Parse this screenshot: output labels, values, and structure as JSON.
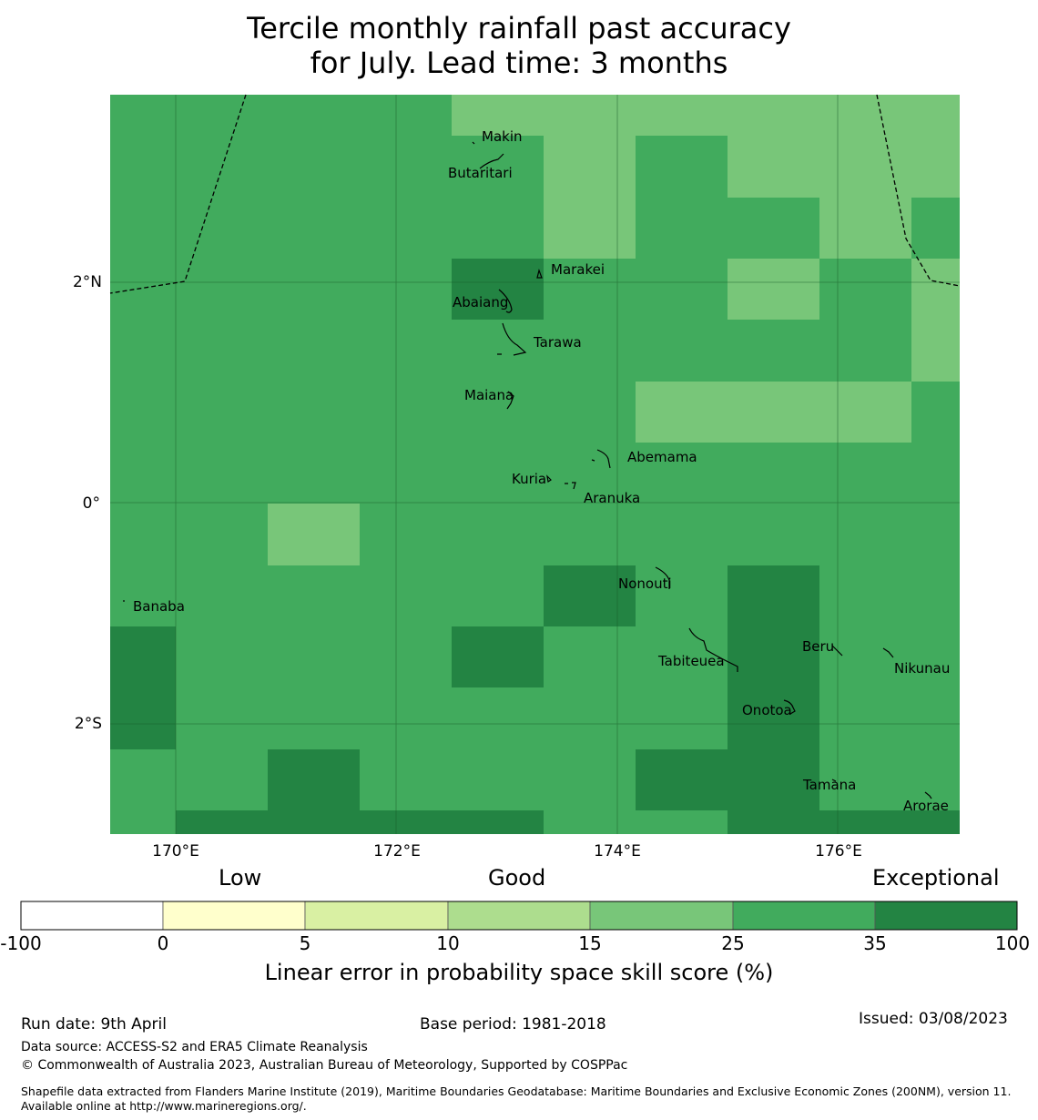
{
  "title": {
    "line1": "Tercile monthly rainfall past accuracy",
    "line2": "for July. Lead time: 3 months"
  },
  "map": {
    "lon_ticks": [
      "170°E",
      "172°E",
      "174°E",
      "176°E"
    ],
    "lat_ticks": [
      "2°N",
      "0°",
      "2°S"
    ],
    "islands": [
      "Makin",
      "Butaritari",
      "Marakei",
      "Abaiang",
      "Tarawa",
      "Maiana",
      "Abemama",
      "Kuria",
      "Aranuka",
      "Nonouti",
      "Banaba",
      "Tabiteuea",
      "Beru",
      "Nikunau",
      "Onotoa",
      "Tamana",
      "Arorae"
    ]
  },
  "legend": {
    "categories": [
      "Low",
      "Good",
      "Exceptional"
    ],
    "ticks": [
      "-100",
      "0",
      "5",
      "10",
      "15",
      "25",
      "35",
      "100"
    ],
    "colors": [
      "#ffffff",
      "#ffffcc",
      "#d9f0a3",
      "#addd8e",
      "#78c679",
      "#41ab5d",
      "#238443"
    ],
    "label": "Linear error in probability space skill score (%)"
  },
  "footer": {
    "run_date": "Run date: 9th April",
    "base_period": "Base period: 1981-2018",
    "issued": "Issued: 03/08/2023",
    "data_source": "Data source: ACCESS-S2 and ERA5 Climate Reanalysis",
    "copyright": "© Commonwealth of Australia 2023, Australian Bureau of Meteorology, Supported by COSPPac",
    "shapefile": "Shapefile data extracted from Flanders Marine Institute (2019), Maritime Boundaries Geodatabase: Maritime Boundaries and Exclusive Economic Zones (200NM), version 11. Available online at http://www.marineregions.org/."
  }
}
